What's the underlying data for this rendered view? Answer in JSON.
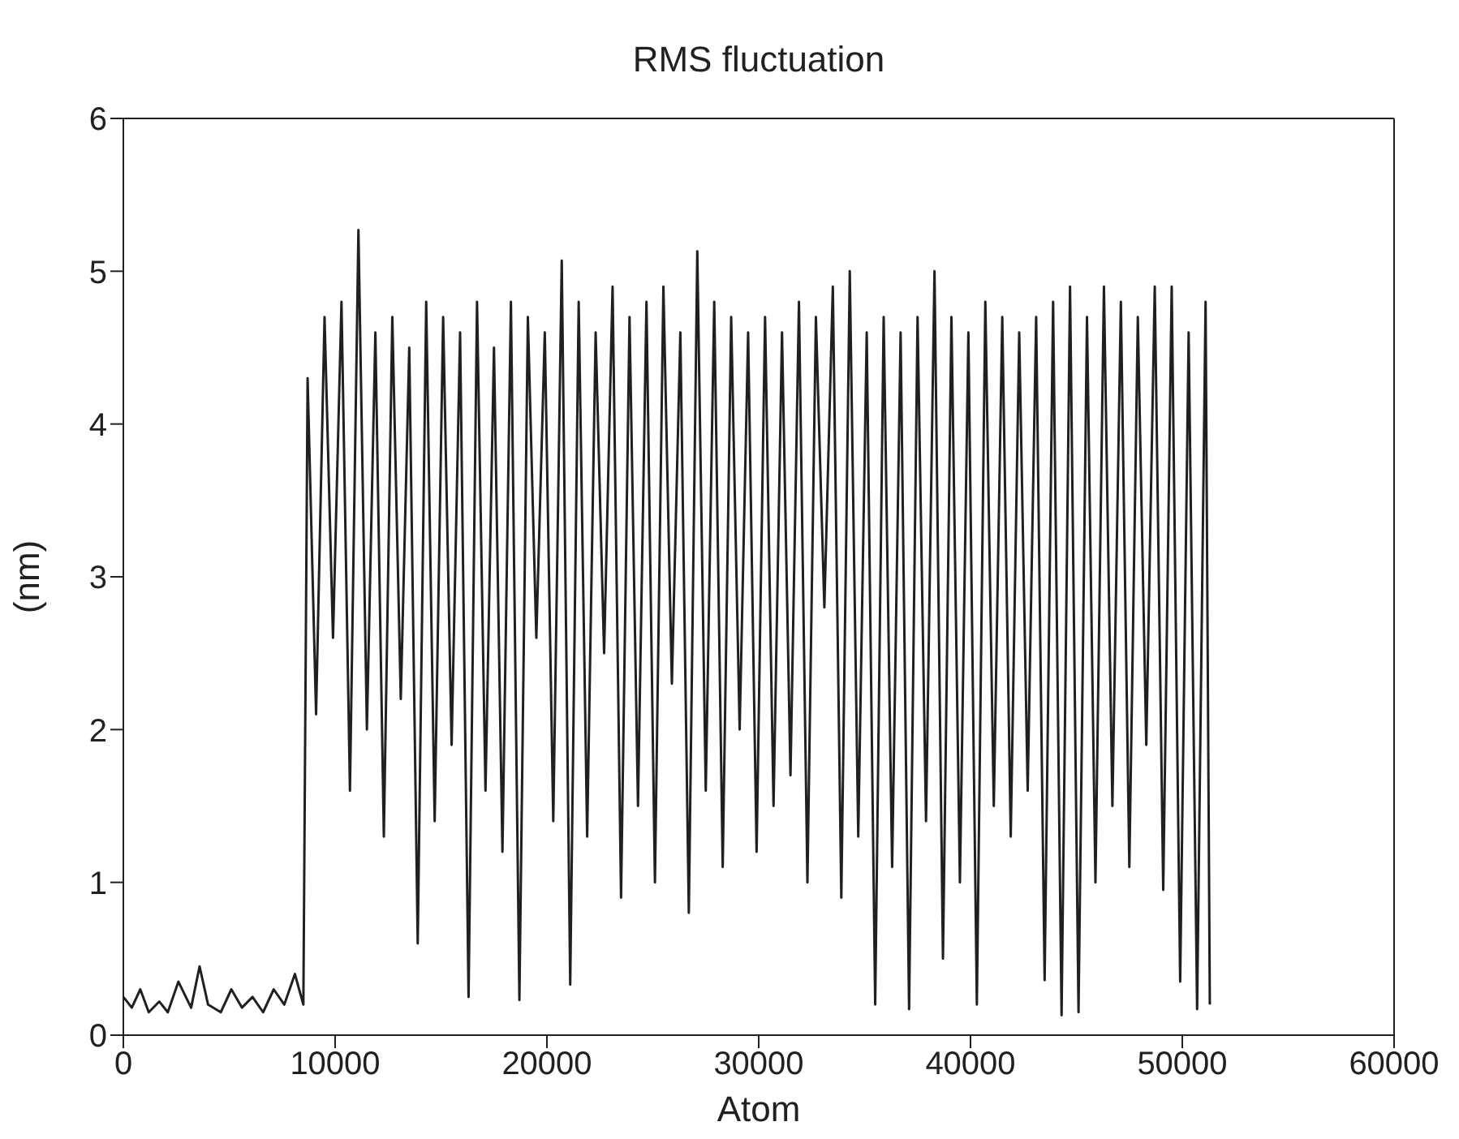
{
  "chart_data": {
    "type": "line",
    "title": "RMS fluctuation",
    "xlabel": "Atom",
    "ylabel": "(nm)",
    "xlim": [
      0,
      60000
    ],
    "xticks": [
      0,
      10000,
      20000,
      30000,
      40000,
      50000,
      60000
    ],
    "ylim": [
      0,
      6
    ],
    "yticks": [
      0,
      1,
      2,
      3,
      4,
      5,
      6
    ],
    "grid": false,
    "legend": false,
    "marker": "none",
    "line_style": "solid",
    "x": [
      0,
      400,
      800,
      1200,
      1700,
      2100,
      2600,
      3200,
      3600,
      4000,
      4600,
      5100,
      5600,
      6100,
      6600,
      7100,
      7600,
      8100,
      8500,
      8700,
      9100,
      9500,
      9900,
      10300,
      10700,
      11100,
      11500,
      11900,
      12300,
      12700,
      13100,
      13500,
      13900,
      14300,
      14700,
      15100,
      15500,
      15900,
      16300,
      16700,
      17100,
      17500,
      17900,
      18300,
      18700,
      19100,
      19500,
      19900,
      20300,
      20700,
      21100,
      21500,
      21900,
      22300,
      22700,
      23100,
      23500,
      23900,
      24300,
      24700,
      25100,
      25500,
      25900,
      26300,
      26700,
      27100,
      27500,
      27900,
      28300,
      28700,
      29100,
      29500,
      29900,
      30300,
      30700,
      31100,
      31500,
      31900,
      32300,
      32700,
      33100,
      33500,
      33900,
      34300,
      34700,
      35100,
      35500,
      35900,
      36300,
      36700,
      37100,
      37500,
      37900,
      38300,
      38700,
      39100,
      39500,
      39900,
      40300,
      40700,
      41100,
      41500,
      41900,
      42300,
      42700,
      43100,
      43500,
      43900,
      44300,
      44700,
      45100,
      45500,
      45900,
      46300,
      46700,
      47100,
      47500,
      47900,
      48300,
      48700,
      49100,
      49500,
      49900,
      50300,
      50700,
      51100,
      51300
    ],
    "series": [
      {
        "color": "#231f20",
        "values": [
          0.25,
          0.18,
          0.3,
          0.15,
          0.22,
          0.15,
          0.35,
          0.18,
          0.45,
          0.2,
          0.15,
          0.3,
          0.18,
          0.25,
          0.15,
          0.3,
          0.2,
          0.4,
          0.2,
          4.3,
          2.1,
          4.7,
          2.6,
          4.8,
          1.6,
          5.27,
          2.0,
          4.6,
          1.3,
          4.7,
          2.2,
          4.5,
          0.6,
          4.8,
          1.4,
          4.7,
          1.9,
          4.6,
          0.25,
          4.8,
          1.6,
          4.5,
          1.2,
          4.8,
          0.23,
          4.7,
          2.6,
          4.6,
          1.4,
          5.07,
          0.33,
          4.8,
          1.3,
          4.6,
          2.5,
          4.9,
          0.9,
          4.7,
          1.5,
          4.8,
          1.0,
          4.9,
          2.3,
          4.6,
          0.8,
          5.13,
          1.6,
          4.8,
          1.1,
          4.7,
          2.0,
          4.6,
          1.2,
          4.7,
          1.5,
          4.6,
          1.7,
          4.8,
          1.0,
          4.7,
          2.8,
          4.9,
          0.9,
          5.0,
          1.3,
          4.6,
          0.2,
          4.7,
          1.1,
          4.6,
          0.17,
          4.7,
          1.4,
          5.0,
          0.5,
          4.7,
          1.0,
          4.6,
          0.2,
          4.8,
          1.5,
          4.7,
          1.3,
          4.6,
          1.6,
          4.7,
          0.36,
          4.8,
          0.13,
          4.9,
          0.15,
          4.7,
          1.0,
          4.9,
          1.5,
          4.8,
          1.1,
          4.7,
          1.9,
          4.9,
          0.95,
          4.9,
          0.35,
          4.6,
          0.17,
          4.8,
          0.2
        ]
      }
    ]
  }
}
